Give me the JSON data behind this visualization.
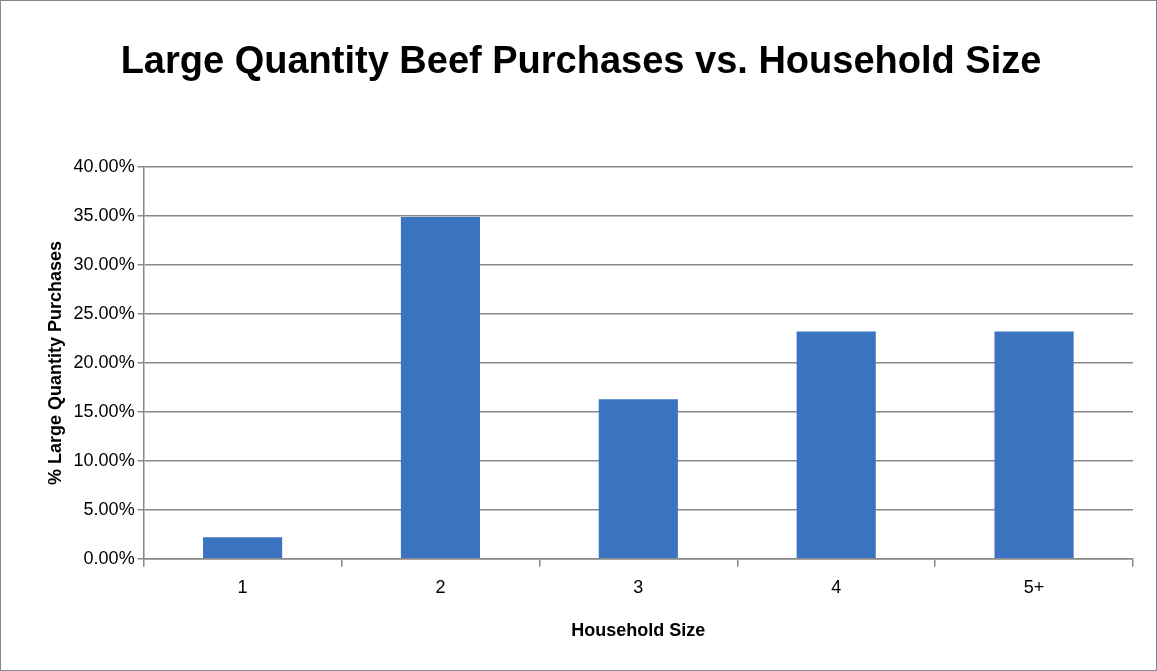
{
  "chart_data": {
    "type": "bar",
    "title": "Large Quantity Beef Purchases vs. Household Size",
    "xlabel": "Household Size",
    "ylabel": "% Large Quantity Purchases",
    "categories": [
      "1",
      "2",
      "3",
      "4",
      "5+"
    ],
    "values": [
      2.2,
      34.9,
      16.3,
      23.2,
      23.2
    ],
    "color": "#3a74c0",
    "ylim": [
      0,
      40
    ],
    "yticks": [
      {
        "value": 0,
        "label": "0.00%"
      },
      {
        "value": 5,
        "label": "5.00%"
      },
      {
        "value": 10,
        "label": "10.00%"
      },
      {
        "value": 15,
        "label": "15.00%"
      },
      {
        "value": 20,
        "label": "20.00%"
      },
      {
        "value": 25,
        "label": "25.00%"
      },
      {
        "value": 30,
        "label": "30.00%"
      },
      {
        "value": 35,
        "label": "35.00%"
      },
      {
        "value": 40,
        "label": "40.00%"
      }
    ],
    "grid": "y",
    "legend": false
  }
}
